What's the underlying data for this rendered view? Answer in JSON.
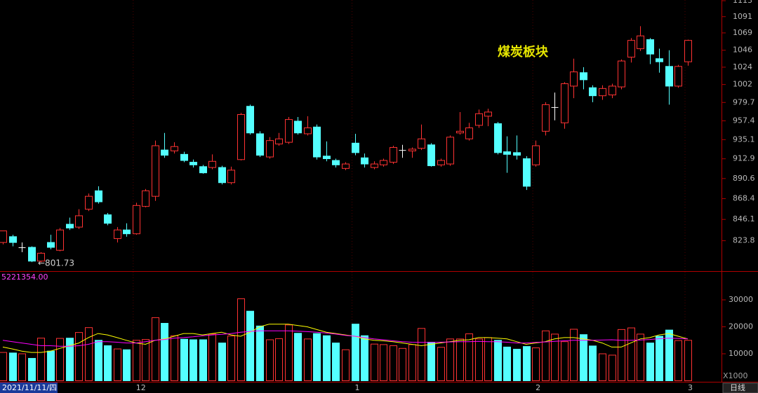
{
  "chart_data": [
    {
      "type": "candlestick",
      "title": "煤炭板块",
      "log_scale": true,
      "annotation": "←801.73",
      "up_color": "#ff3232",
      "down_color": "#54ffff",
      "flat_color": "#ffffff",
      "ylim": [
        793,
        1114
      ],
      "yticks": [
        1113,
        1091,
        1069,
        1046,
        1024,
        1002,
        979.7,
        957.4,
        935.1,
        912.9,
        890.6,
        868.4,
        846.1,
        823.8
      ],
      "open": [
        822,
        828,
        817,
        817,
        803,
        822,
        814,
        841,
        838,
        857,
        877,
        851,
        826,
        835,
        831,
        860,
        871,
        923,
        922,
        918,
        909,
        904,
        903,
        903,
        886,
        912,
        975,
        942,
        915,
        930,
        932,
        957,
        942,
        950,
        916,
        911,
        902,
        931,
        914,
        903,
        906,
        909,
        923,
        922,
        925,
        929,
        906,
        907,
        943,
        936,
        952,
        963,
        954,
        921,
        920,
        913,
        906,
        945,
        974,
        955,
        1000,
        1017,
        998,
        988,
        989,
        999,
        1037,
        1048,
        1060,
        1035,
        1025,
        1000,
        1031
      ],
      "high": [
        834,
        830,
        822,
        818,
        812,
        830,
        837,
        848,
        857,
        874,
        882,
        853,
        838,
        842,
        864,
        879,
        934,
        943,
        932,
        921,
        912,
        906,
        918,
        905,
        904,
        967,
        977,
        945,
        938,
        943,
        962,
        962,
        963,
        953,
        933,
        913,
        909,
        942,
        919,
        910,
        913,
        928,
        929,
        926,
        953,
        931,
        913,
        940,
        968,
        955,
        971,
        972,
        956,
        939,
        940,
        916,
        934,
        980,
        992,
        1005,
        1035,
        1024,
        1001,
        1001,
        1003,
        1034,
        1062,
        1078,
        1062,
        1048,
        1046,
        1027,
        1060
      ],
      "low": [
        820,
        818,
        812,
        802,
        801.73,
        815,
        813,
        835,
        836,
        855,
        863,
        840,
        822,
        828,
        830,
        859,
        866,
        914,
        919,
        909,
        903,
        896,
        901,
        884,
        884,
        911,
        941,
        915,
        913,
        928,
        930,
        941,
        940,
        912,
        910,
        903,
        900,
        917,
        903,
        901,
        904,
        907,
        914,
        914,
        923,
        904,
        904,
        905,
        941,
        934,
        949,
        951,
        918,
        897,
        912,
        878,
        904,
        940,
        958,
        948,
        985,
        996,
        980,
        983,
        985,
        996,
        1030,
        1045,
        1028,
        1017,
        977,
        998,
        1026
      ],
      "close": [
        834,
        822,
        817,
        803,
        811,
        817,
        835,
        837,
        850,
        871,
        865,
        842,
        835,
        831,
        861,
        877,
        928,
        917,
        927,
        911,
        906,
        897,
        910,
        886,
        900,
        965,
        943,
        917,
        934,
        936,
        959,
        943,
        949,
        915,
        913,
        906,
        907,
        920,
        907,
        907,
        911,
        926,
        923,
        924,
        936,
        905,
        911,
        938,
        945,
        949,
        966,
        968,
        920,
        918,
        917,
        882,
        928,
        977,
        974,
        1003,
        1018,
        1008,
        988,
        997,
        1000,
        1032,
        1059,
        1065,
        1041,
        1031,
        1000,
        1025,
        1059
      ]
    },
    {
      "type": "bar",
      "value_header": "5221354.00",
      "unit_label": "X1000",
      "categories": [
        null,
        null,
        null,
        null,
        null,
        null,
        null,
        null,
        null,
        null,
        null,
        null,
        null,
        null,
        "12",
        null,
        null,
        null,
        null,
        null,
        null,
        null,
        null,
        null,
        null,
        null,
        null,
        null,
        null,
        null,
        null,
        null,
        null,
        null,
        null,
        null,
        null,
        "1",
        null,
        null,
        null,
        null,
        null,
        null,
        null,
        null,
        null,
        null,
        null,
        null,
        null,
        null,
        null,
        null,
        null,
        null,
        "2",
        null,
        null,
        null,
        null,
        null,
        null,
        null,
        null,
        null,
        null,
        null,
        null,
        null,
        null,
        null,
        "3"
      ],
      "values": [
        10500,
        10300,
        10000,
        8300,
        15800,
        11000,
        15700,
        15800,
        17900,
        19700,
        15000,
        13000,
        11800,
        11500,
        15000,
        15300,
        23400,
        21300,
        16700,
        15400,
        15200,
        15200,
        17300,
        14000,
        16600,
        30400,
        25800,
        20300,
        15200,
        15600,
        20700,
        17600,
        15500,
        17500,
        16700,
        14000,
        11500,
        21000,
        16700,
        13600,
        13400,
        13000,
        12000,
        13400,
        19400,
        14300,
        12400,
        15500,
        15500,
        17400,
        15500,
        16000,
        15000,
        12500,
        11700,
        12700,
        12200,
        18500,
        17300,
        14500,
        19100,
        17100,
        12900,
        10000,
        9500,
        19000,
        19600,
        17300,
        14000,
        16500,
        18800,
        14900,
        15000
      ],
      "series": [
        {
          "color": "#ffff00",
          "values": [
            12500,
            11800,
            11000,
            10500,
            10500,
            11000,
            12000,
            13000,
            14000,
            16000,
            17500,
            17000,
            16000,
            15000,
            14000,
            13500,
            15000,
            15500,
            16500,
            17500,
            17500,
            17000,
            17500,
            18000,
            17000,
            16500,
            18000,
            20000,
            21000,
            21000,
            21000,
            20500,
            20000,
            19000,
            18000,
            17500,
            17000,
            16500,
            15500,
            15000,
            14800,
            14500,
            14000,
            13500,
            13000,
            13500,
            14000,
            14500,
            15000,
            15200,
            16000,
            16000,
            15800,
            15500,
            14500,
            13500,
            14000,
            14500,
            15500,
            16000,
            16000,
            15500,
            15000,
            14000,
            12500,
            12500,
            14000,
            15500,
            16000,
            17000,
            17500,
            16500,
            15500
          ]
        },
        {
          "color": "#ff00ff",
          "values": [
            15000,
            14500,
            14000,
            13500,
            13000,
            13000,
            12800,
            12800,
            13000,
            13500,
            14500,
            14500,
            14300,
            14000,
            14000,
            14500,
            15000,
            15300,
            15800,
            16000,
            16300,
            16700,
            17000,
            17200,
            17500,
            18000,
            18300,
            18500,
            18500,
            18500,
            18500,
            18400,
            18200,
            18000,
            17700,
            17300,
            16800,
            16500,
            16000,
            15500,
            15200,
            14800,
            14500,
            14300,
            14200,
            14200,
            14300,
            14400,
            14500,
            14500,
            14600,
            14500,
            14500,
            14300,
            14000,
            14000,
            14200,
            14400,
            14600,
            14800,
            15000,
            15000,
            15000,
            15100,
            15200,
            15000,
            15000,
            15100,
            15300,
            15600,
            15800,
            15700,
            15500
          ]
        }
      ],
      "ylim": [
        0,
        40400
      ],
      "yticks": [
        10000,
        20000,
        30000
      ]
    }
  ],
  "status": {
    "date": "2021/11/11/四",
    "period": "日线"
  }
}
